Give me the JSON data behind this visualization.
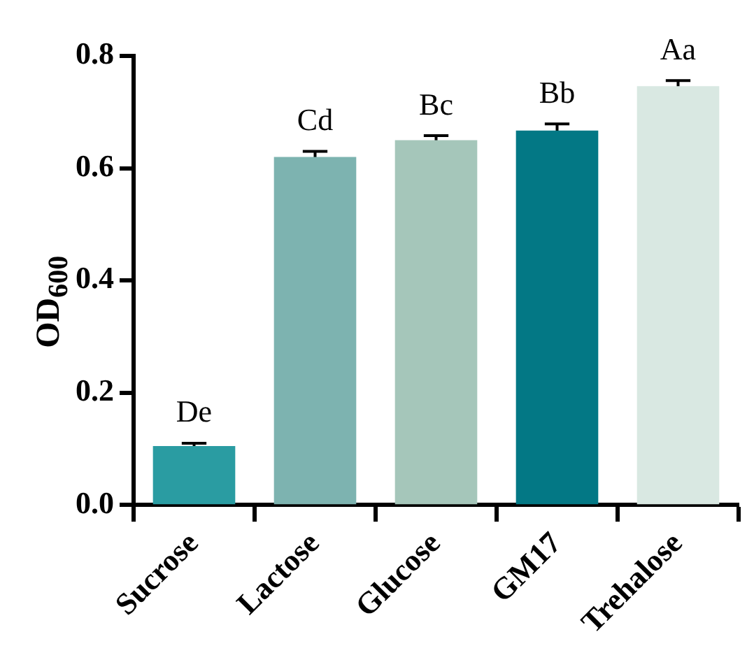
{
  "chart_data": {
    "type": "bar",
    "ylabel": "OD$_{600}$",
    "categories": [
      "Sucrose",
      "Lactose",
      "Glucose",
      "GM17",
      "Trehalose"
    ],
    "values": [
      0.105,
      0.62,
      0.65,
      0.667,
      0.746
    ],
    "errors": [
      0.005,
      0.01,
      0.008,
      0.012,
      0.01
    ],
    "colors": [
      "#2a9ca2",
      "#7db3b0",
      "#a5c6ba",
      "#037885",
      "#d9e8e2"
    ],
    "ylim": [
      0,
      0.8
    ],
    "yticks": [
      {
        "value": 0,
        "label": "0.0"
      },
      {
        "value": 0.2,
        "label": "0.2"
      },
      {
        "value": 0.4,
        "label": "0.4"
      },
      {
        "value": 0.6,
        "label": "0.6"
      },
      {
        "value": 0.8,
        "label": "0.8"
      }
    ],
    "grid": false,
    "legend": false,
    "annotations": [
      {
        "text": "De",
        "x": "Sucrose",
        "y": 0.11
      },
      {
        "text": "Cd",
        "x": "Lactose",
        "y": 0.63
      },
      {
        "text": "Bc",
        "x": "Glucose",
        "y": 0.658
      },
      {
        "text": "Bb",
        "x": "GM17",
        "y": 0.679
      },
      {
        "text": "Aa",
        "x": "Trehalose",
        "y": 0.756
      }
    ]
  }
}
